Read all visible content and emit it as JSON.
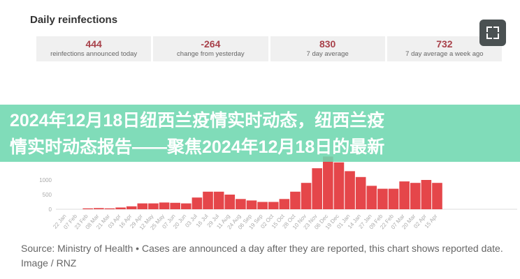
{
  "header": {
    "title": "Daily reinfections"
  },
  "stats": [
    {
      "value": "444",
      "label": "reinfections announced today"
    },
    {
      "value": "-264",
      "label": "change from yesterday"
    },
    {
      "value": "830",
      "label": "7 day average"
    },
    {
      "value": "732",
      "label": "7 day average a week ago"
    }
  ],
  "fullscreen_icon": "fullscreen-icon",
  "banner": {
    "line1": "2024年12月18日纽西兰疫情实时动态，纽西兰疫",
    "line2": "情实时动态报告——聚焦2024年12月18日的最新"
  },
  "chart_data": {
    "type": "bar",
    "title": "Daily reinfections",
    "categories": [
      "22 Jan",
      "07 Feb",
      "23 Feb",
      "08 Mar",
      "21 Mar",
      "03 Apr",
      "16 Apr",
      "29 Apr",
      "12 May",
      "25 May",
      "07 Jun",
      "20 Jun",
      "03 Jul",
      "16 Jul",
      "29 Jul",
      "11 Aug",
      "24 Aug",
      "06 Sep",
      "19 Sep",
      "02 Oct",
      "15 Oct",
      "28 Oct",
      "10 Nov",
      "23 Nov",
      "06 Dec",
      "19 Dec",
      "01 Jan",
      "14 Jan",
      "27 Jan",
      "09 Feb",
      "22 Feb",
      "07 Mar",
      "20 Mar",
      "02 Apr",
      "15 Apr"
    ],
    "values": [
      0,
      0,
      30,
      40,
      30,
      60,
      100,
      200,
      200,
      230,
      220,
      200,
      400,
      600,
      600,
      500,
      350,
      300,
      250,
      250,
      350,
      600,
      900,
      1400,
      1800,
      1600,
      1300,
      1100,
      800,
      700,
      700,
      950,
      900,
      1000,
      900
    ],
    "yticks": [
      0,
      500,
      1000
    ],
    "ylim": [
      0,
      2000
    ],
    "bar_color": "#e5464a",
    "grid": false
  },
  "source": "Source: Ministry of Health • Cases are announced a day after they are reported, this chart shows reported date. Image / RNZ"
}
